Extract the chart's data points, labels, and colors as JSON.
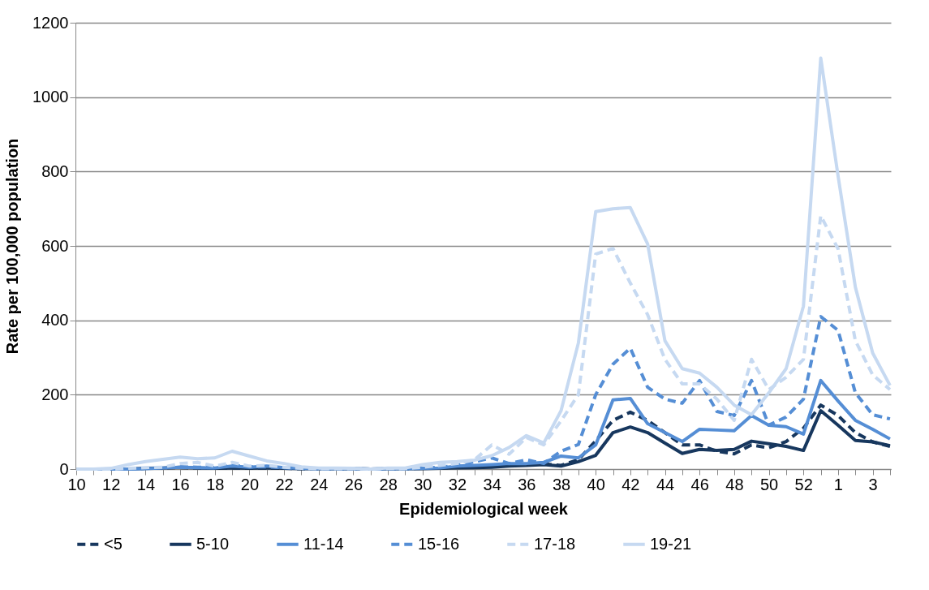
{
  "chart_data": {
    "type": "line",
    "xlabel": "Epidemiological week",
    "ylabel": "Rate per 100,000 population",
    "categories": [
      "10",
      null,
      "12",
      null,
      "14",
      null,
      "16",
      null,
      "18",
      null,
      "20",
      null,
      "22",
      null,
      "24",
      null,
      "26",
      null,
      "28",
      null,
      "30",
      null,
      "32",
      null,
      "34",
      null,
      "36",
      null,
      "38",
      null,
      "40",
      null,
      "42",
      null,
      "44",
      null,
      "46",
      null,
      "48",
      null,
      "50",
      null,
      "52",
      null,
      "1",
      null,
      "3",
      null
    ],
    "ylim": [
      0,
      1200
    ],
    "yticks": [
      0,
      200,
      400,
      600,
      800,
      1000,
      1200
    ],
    "grid": "y",
    "legend": "bottom",
    "series": [
      {
        "name": "<5",
        "color": "#17375e",
        "line_style": "dashed",
        "values": [
          0,
          0,
          0,
          1,
          2,
          3,
          4,
          3,
          2,
          3,
          2,
          3,
          2,
          1,
          1,
          1,
          1,
          0,
          1,
          1,
          2,
          3,
          5,
          6,
          8,
          10,
          12,
          14,
          10,
          25,
          76,
          131,
          153,
          131,
          98,
          65,
          65,
          48,
          41,
          65,
          57,
          74,
          110,
          172,
          144,
          98,
          73,
          61
        ]
      },
      {
        "name": "5-10",
        "color": "#17375e",
        "line_style": "solid",
        "values": [
          0,
          0,
          0,
          0,
          2,
          3,
          5,
          3,
          2,
          3,
          2,
          3,
          2,
          1,
          1,
          1,
          1,
          0,
          1,
          1,
          1,
          2,
          3,
          4,
          5,
          8,
          10,
          12,
          8,
          20,
          37,
          98,
          113,
          98,
          70,
          42,
          53,
          50,
          53,
          75,
          68,
          61,
          50,
          157,
          118,
          77,
          73,
          63
        ]
      },
      {
        "name": "11-14",
        "color": "#558ed5",
        "line_style": "solid",
        "values": [
          0,
          0,
          0,
          0,
          1,
          3,
          5,
          4,
          3,
          8,
          5,
          8,
          4,
          2,
          1,
          1,
          1,
          0,
          1,
          1,
          2,
          3,
          8,
          10,
          12,
          15,
          15,
          18,
          35,
          30,
          65,
          186,
          190,
          122,
          98,
          74,
          107,
          105,
          103,
          144,
          118,
          114,
          94,
          238,
          183,
          131,
          107,
          81
        ]
      },
      {
        "name": "15-16",
        "color": "#558ed5",
        "line_style": "dashed",
        "values": [
          0,
          0,
          0,
          0,
          2,
          4,
          6,
          5,
          4,
          10,
          6,
          6,
          4,
          2,
          1,
          1,
          1,
          0,
          1,
          1,
          3,
          5,
          10,
          20,
          30,
          15,
          25,
          15,
          48,
          66,
          200,
          282,
          325,
          220,
          188,
          177,
          238,
          155,
          144,
          238,
          118,
          140,
          188,
          410,
          373,
          205,
          146,
          135
        ]
      },
      {
        "name": "17-18",
        "color": "#c6d9f1",
        "line_style": "dashed",
        "values": [
          0,
          0,
          0,
          2,
          4,
          5,
          15,
          18,
          8,
          18,
          8,
          10,
          5,
          2,
          1,
          1,
          1,
          0,
          2,
          1,
          5,
          10,
          15,
          25,
          65,
          40,
          85,
          65,
          130,
          200,
          578,
          593,
          500,
          415,
          295,
          229,
          229,
          188,
          131,
          295,
          214,
          247,
          295,
          681,
          592,
          345,
          253,
          214
        ]
      },
      {
        "name": "19-21",
        "color": "#c6d9f1",
        "line_style": "solid",
        "values": [
          0,
          0,
          2,
          12,
          20,
          26,
          32,
          28,
          30,
          48,
          35,
          22,
          15,
          6,
          3,
          3,
          2,
          0,
          3,
          3,
          12,
          18,
          20,
          24,
          36,
          58,
          90,
          70,
          157,
          339,
          692,
          700,
          703,
          605,
          345,
          270,
          258,
          220,
          172,
          146,
          205,
          270,
          438,
          1105,
          788,
          489,
          312,
          225
        ]
      }
    ]
  }
}
